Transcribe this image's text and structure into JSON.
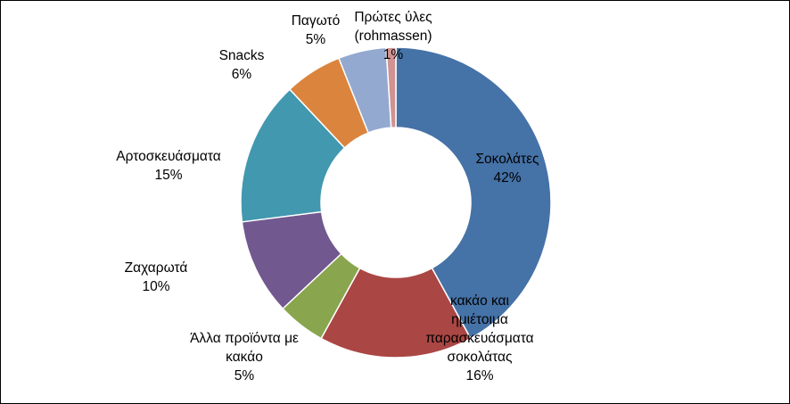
{
  "chart_data": {
    "type": "pie",
    "variant": "doughnut",
    "title": "",
    "slices": [
      {
        "label_lines": [
          "Σοκολάτες"
        ],
        "percent_label": "42%",
        "value": 42,
        "color": "#4572A7"
      },
      {
        "label_lines": [
          "κακάο και",
          "ημιέτοιμα",
          "παρασκευάσματα",
          "σοκολάτας"
        ],
        "percent_label": "16%",
        "value": 16,
        "color": "#AA4643"
      },
      {
        "label_lines": [
          "Άλλα προϊόντα με",
          "κακάο"
        ],
        "percent_label": "5%",
        "value": 5,
        "color": "#89A54E"
      },
      {
        "label_lines": [
          "Ζαχαρωτά"
        ],
        "percent_label": "10%",
        "value": 10,
        "color": "#71588F"
      },
      {
        "label_lines": [
          "Αρτοσκευάσματα"
        ],
        "percent_label": "15%",
        "value": 15,
        "color": "#4198AF"
      },
      {
        "label_lines": [
          "Snacks"
        ],
        "percent_label": "6%",
        "value": 6,
        "color": "#DB843D"
      },
      {
        "label_lines": [
          "Παγωτό"
        ],
        "percent_label": "5%",
        "value": 5,
        "color": "#93A9CF"
      },
      {
        "label_lines": [
          "Πρώτες ύλες",
          "(rohmassen)"
        ],
        "percent_label": "1%",
        "value": 1,
        "color": "#D19392"
      }
    ],
    "legend": "none",
    "data_labels": "outside or on slice"
  }
}
